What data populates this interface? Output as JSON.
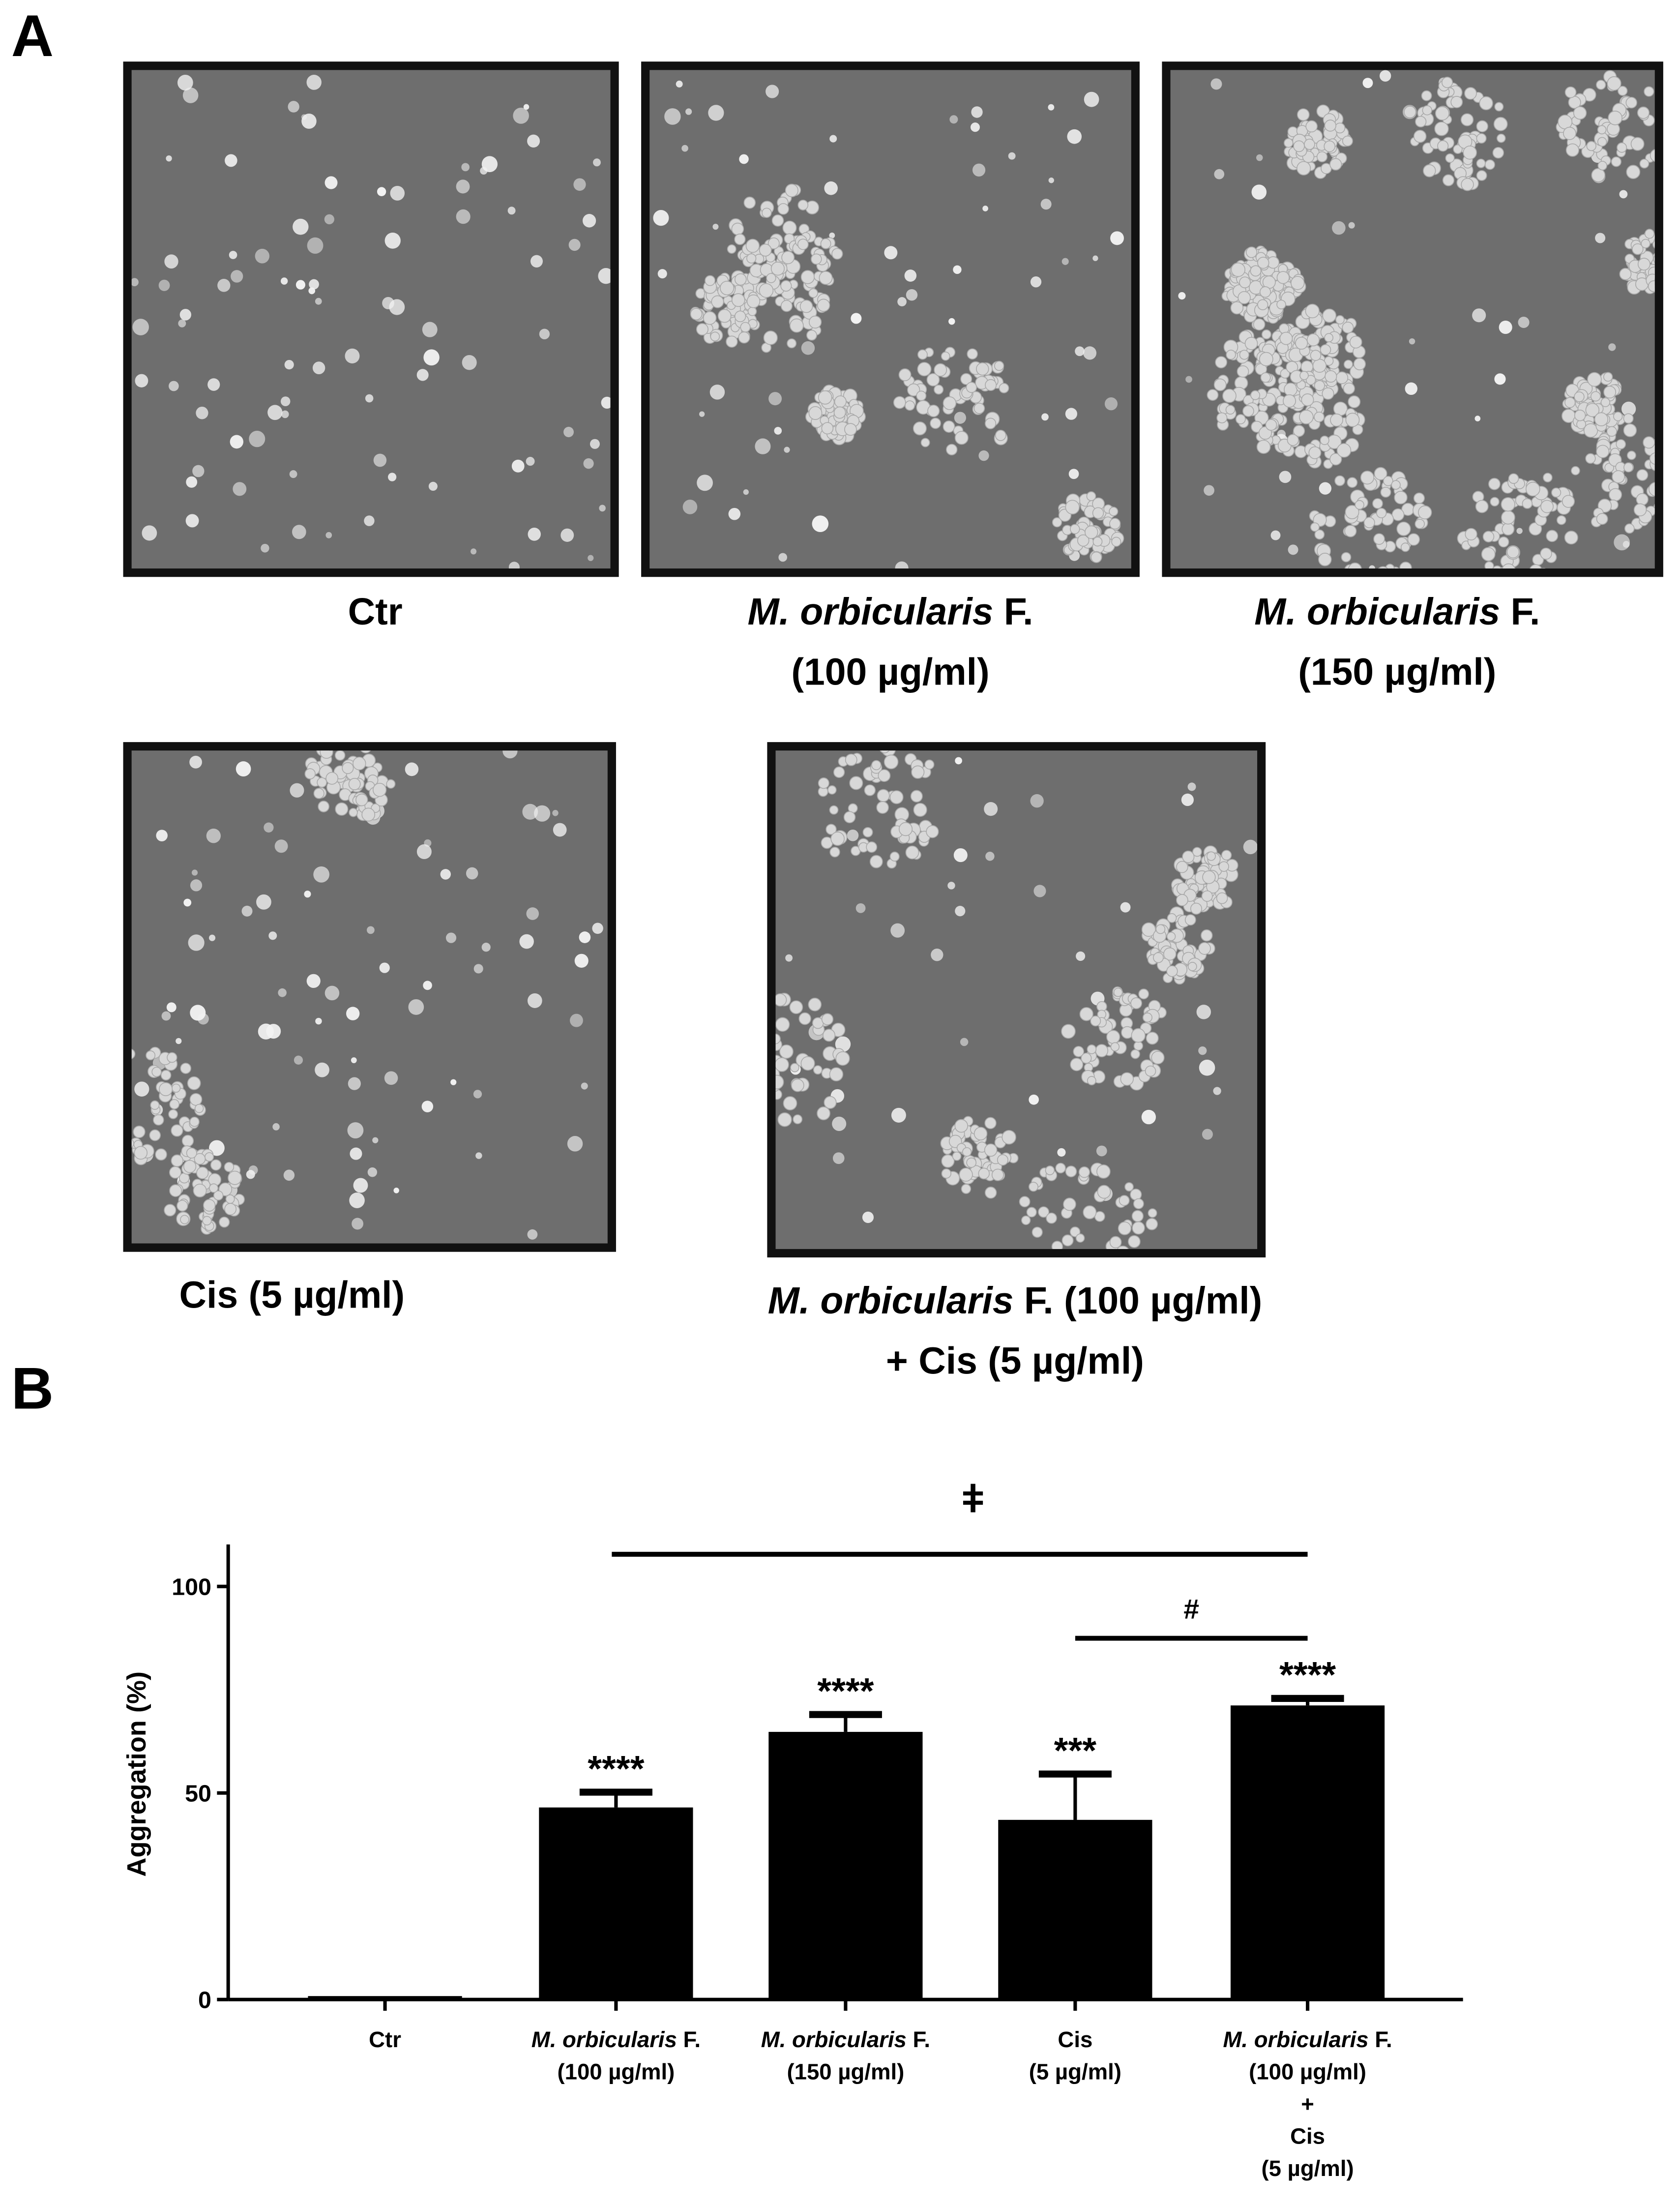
{
  "panel_labels": {
    "a": "A",
    "b": "B"
  },
  "micrographs": [
    {
      "id": "ctr",
      "label_line1": "Ctr",
      "label_line1_italic": "",
      "label_line2": "",
      "pattern": "scattered single cells"
    },
    {
      "id": "mo100",
      "label_line1_italic": "M. orbicularis",
      "label_line1": " F.",
      "label_line2": "(100 µg/ml)",
      "pattern": "moderate aggregates"
    },
    {
      "id": "mo150",
      "label_line1_italic": "M. orbicularis",
      "label_line1": " F.",
      "label_line2": "(150 µg/ml)",
      "pattern": "extensive aggregates"
    },
    {
      "id": "cis5",
      "label_line1": "Cis (5 µg/ml)",
      "label_line1_italic": "",
      "label_line2": "",
      "pattern": "scattered cells with few aggregates"
    },
    {
      "id": "combo",
      "label_line1_italic": "M. orbicularis",
      "label_line1": " F. (100 µg/ml)",
      "label_line2": "+ Cis (5 µg/ml)",
      "pattern": "large aggregates"
    }
  ],
  "colors": {
    "bar": "#000000",
    "micrograph_bg": "#6e6e6e",
    "cell": "#f2f2f2"
  },
  "chart_data": {
    "type": "bar",
    "ylabel": "Aggregation (%)",
    "xlabel": "",
    "ylim": [
      0,
      110
    ],
    "yticks": [
      0,
      50,
      100
    ],
    "grid": false,
    "categories": [
      [
        "Ctr"
      ],
      [
        "M. orbicularis F.",
        "(100 µg/ml)"
      ],
      [
        "M. orbicularis F.",
        "(150 µg/ml)"
      ],
      [
        "Cis",
        "(5 µg/ml)"
      ],
      [
        "M. orbicularis F.",
        "(100 µg/ml)",
        "+",
        "Cis",
        "(5 µg/ml)"
      ]
    ],
    "values": [
      0.5,
      46.5,
      64.8,
      43.5,
      71.2
    ],
    "error_upper": [
      0.5,
      50.2,
      69.0,
      54.6,
      72.9
    ],
    "significance": [
      "",
      "****",
      "****",
      "***",
      "****"
    ],
    "comparisons": [
      {
        "from": 1,
        "to": 4,
        "symbol": "ǂ"
      },
      {
        "from": 3,
        "to": 4,
        "symbol": "#"
      }
    ]
  }
}
